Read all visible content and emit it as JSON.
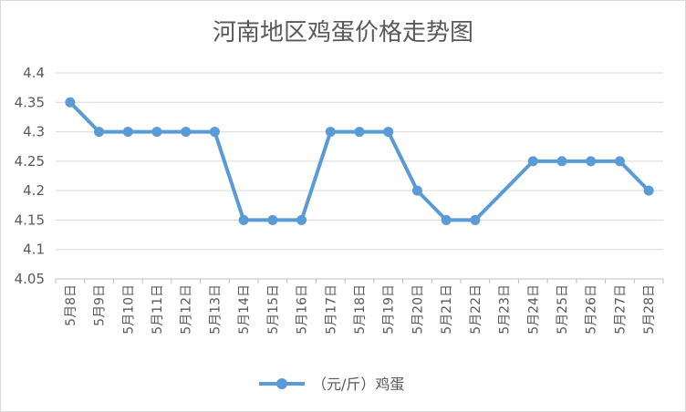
{
  "chart_data": {
    "type": "line",
    "title": "河南地区鸡蛋价格走势图",
    "xlabel": "",
    "ylabel": "",
    "categories": [
      "5月8日",
      "5月9日",
      "5月10日",
      "5月11日",
      "5月12日",
      "5月13日",
      "5月14日",
      "5月15日",
      "5月16日",
      "5月17日",
      "5月18日",
      "5月19日",
      "5月20日",
      "5月21日",
      "5月22日",
      "5月23日",
      "5月24日",
      "5月25日",
      "5月26日",
      "5月27日",
      "5月28日"
    ],
    "series": [
      {
        "name": "（元/斤）鸡蛋",
        "values": [
          4.35,
          4.3,
          4.3,
          4.3,
          4.3,
          4.3,
          4.15,
          4.15,
          4.15,
          4.3,
          4.3,
          4.3,
          4.2,
          4.15,
          4.15,
          null,
          4.25,
          4.25,
          4.25,
          4.25,
          4.2
        ],
        "color": "#5B9BD5"
      }
    ],
    "yticks": [
      "4.05",
      "4.1",
      "4.15",
      "4.2",
      "4.25",
      "4.3",
      "4.35",
      "4.4"
    ],
    "ylim": [
      4.05,
      4.4
    ],
    "grid": true,
    "legend": "bottom"
  }
}
